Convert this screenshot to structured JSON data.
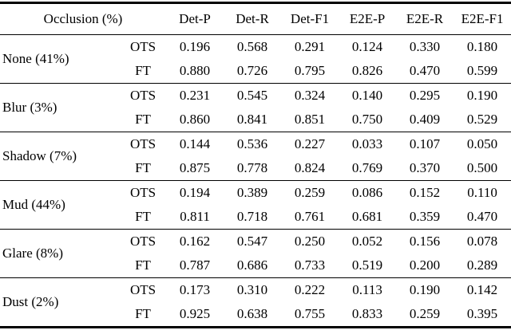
{
  "title": "Occlusion ablation results table",
  "colors": {
    "background": "#ffffff",
    "text": "#000000",
    "rule": "#000000"
  },
  "chart_data": {
    "type": "table",
    "columns": [
      "Occlusion (%)",
      "Det-P",
      "Det-R",
      "Det-F1",
      "E2E-P",
      "E2E-R",
      "E2E-F1"
    ],
    "method_column_values": [
      "OTS",
      "FT"
    ],
    "groups": [
      {
        "label": "None (41%)",
        "rows": [
          {
            "method": "OTS",
            "values": [
              "0.196",
              "0.568",
              "0.291",
              "0.124",
              "0.330",
              "0.180"
            ]
          },
          {
            "method": "FT",
            "values": [
              "0.880",
              "0.726",
              "0.795",
              "0.826",
              "0.470",
              "0.599"
            ]
          }
        ]
      },
      {
        "label": "Blur (3%)",
        "rows": [
          {
            "method": "OTS",
            "values": [
              "0.231",
              "0.545",
              "0.324",
              "0.140",
              "0.295",
              "0.190"
            ]
          },
          {
            "method": "FT",
            "values": [
              "0.860",
              "0.841",
              "0.851",
              "0.750",
              "0.409",
              "0.529"
            ]
          }
        ]
      },
      {
        "label": "Shadow (7%)",
        "rows": [
          {
            "method": "OTS",
            "values": [
              "0.144",
              "0.536",
              "0.227",
              "0.033",
              "0.107",
              "0.050"
            ]
          },
          {
            "method": "FT",
            "values": [
              "0.875",
              "0.778",
              "0.824",
              "0.769",
              "0.370",
              "0.500"
            ]
          }
        ]
      },
      {
        "label": "Mud (44%)",
        "rows": [
          {
            "method": "OTS",
            "values": [
              "0.194",
              "0.389",
              "0.259",
              "0.086",
              "0.152",
              "0.110"
            ]
          },
          {
            "method": "FT",
            "values": [
              "0.811",
              "0.718",
              "0.761",
              "0.681",
              "0.359",
              "0.470"
            ]
          }
        ]
      },
      {
        "label": "Glare (8%)",
        "rows": [
          {
            "method": "OTS",
            "values": [
              "0.162",
              "0.547",
              "0.250",
              "0.052",
              "0.156",
              "0.078"
            ]
          },
          {
            "method": "FT",
            "values": [
              "0.787",
              "0.686",
              "0.733",
              "0.519",
              "0.200",
              "0.289"
            ]
          }
        ]
      },
      {
        "label": "Dust (2%)",
        "rows": [
          {
            "method": "OTS",
            "values": [
              "0.173",
              "0.310",
              "0.222",
              "0.113",
              "0.190",
              "0.142"
            ]
          },
          {
            "method": "FT",
            "values": [
              "0.925",
              "0.638",
              "0.755",
              "0.833",
              "0.259",
              "0.395"
            ]
          }
        ]
      }
    ]
  }
}
